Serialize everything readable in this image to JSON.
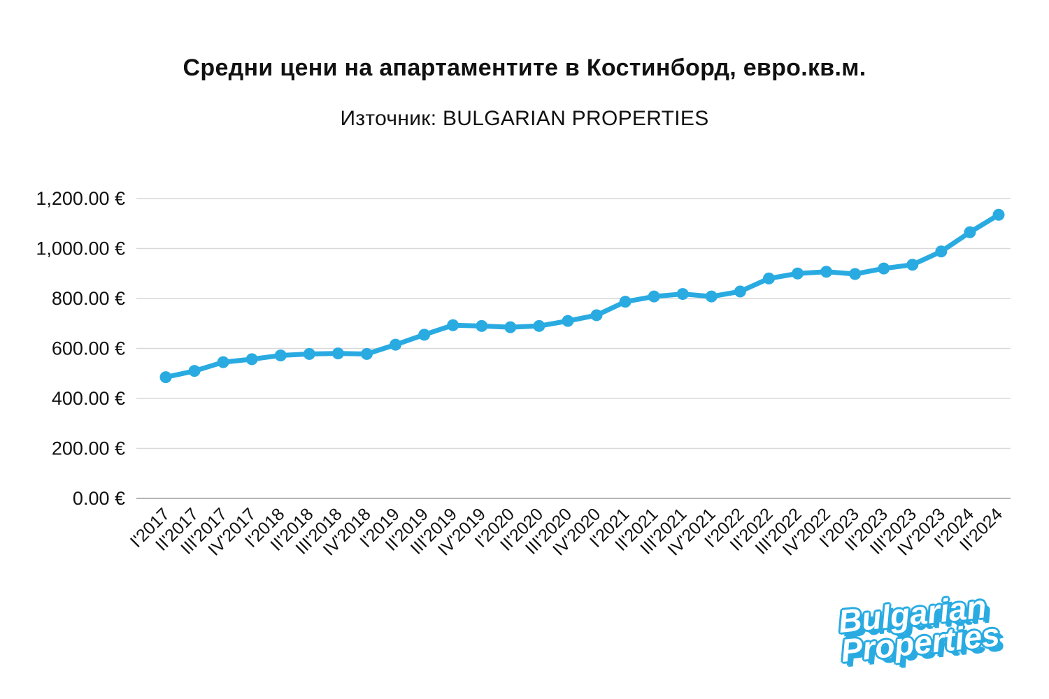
{
  "header": {
    "title": "Средни цени на апартаментите в Костинборд, евро.кв.м.",
    "subtitle": "Източник: BULGARIAN PROPERTIES"
  },
  "chart_data": {
    "type": "line",
    "title": "Средни цени на апартаментите в Костинборд, евро.кв.м.",
    "subtitle": "Източник: BULGARIAN PROPERTIES",
    "xlabel": "",
    "ylabel": "",
    "ylim": [
      0,
      1200
    ],
    "ytick_step": 200,
    "ytick_labels": [
      "0.00 €",
      "200.00 €",
      "400.00 €",
      "600.00 €",
      "800.00 €",
      "1,000.00 €",
      "1,200.00 €"
    ],
    "grid": true,
    "legend_position": "none",
    "line_color": "#29ABE2",
    "categories": [
      "I'2017",
      "II'2017",
      "III'2017",
      "IV'2017",
      "I'2018",
      "II'2018",
      "III'2018",
      "IV'2018",
      "I'2019",
      "II'2019",
      "III'2019",
      "IV'2019",
      "I'2020",
      "II'2020",
      "III'2020",
      "IV'2020",
      "I'2021",
      "II'2021",
      "III'2021",
      "IV'2021",
      "I'2022",
      "II'2022",
      "III'2022",
      "IV'2022",
      "I'2023",
      "II'2023",
      "III'2023",
      "IV'2023",
      "I'2024",
      "II'2024"
    ],
    "values": [
      485,
      510,
      545,
      557,
      572,
      578,
      580,
      578,
      615,
      655,
      693,
      690,
      685,
      690,
      710,
      733,
      787,
      808,
      818,
      808,
      828,
      880,
      900,
      907,
      898,
      920,
      935,
      988,
      1065,
      1135
    ]
  },
  "logo": {
    "line1": "Bulgarian",
    "line2": "Properties"
  }
}
